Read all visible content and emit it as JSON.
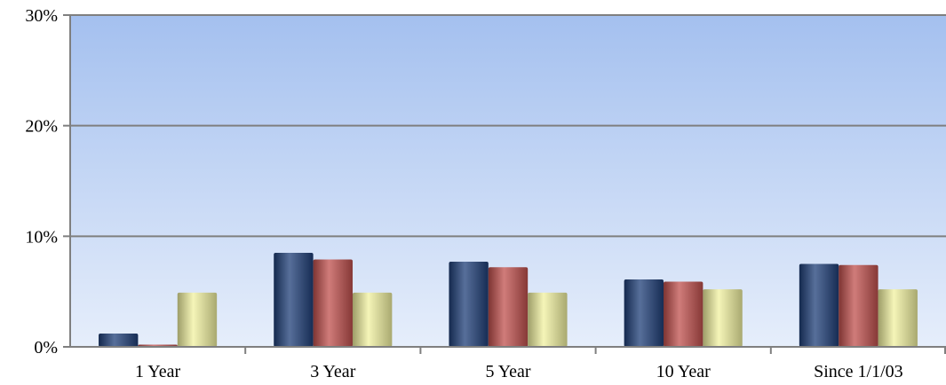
{
  "chart_data": {
    "type": "bar",
    "categories": [
      "1 Year",
      "3 Year",
      "5 Year",
      "10 Year",
      "Since 1/1/03"
    ],
    "series": [
      {
        "values": [
          1.2,
          8.5,
          7.7,
          6.1,
          7.5
        ],
        "color": "#1f3f78"
      },
      {
        "values": [
          0.2,
          7.9,
          7.2,
          5.9,
          7.4
        ],
        "color": "#c0504d"
      },
      {
        "values": [
          4.9,
          4.9,
          4.9,
          5.2,
          5.2
        ],
        "color": "#f2f2a0"
      }
    ],
    "y_ticks": [
      "0%",
      "10%",
      "20%",
      "30%"
    ],
    "ylim": [
      0,
      30
    ],
    "grid": true,
    "legend": "none",
    "background_gradient": [
      "#a4c0ef",
      "#e6eefb"
    ]
  }
}
